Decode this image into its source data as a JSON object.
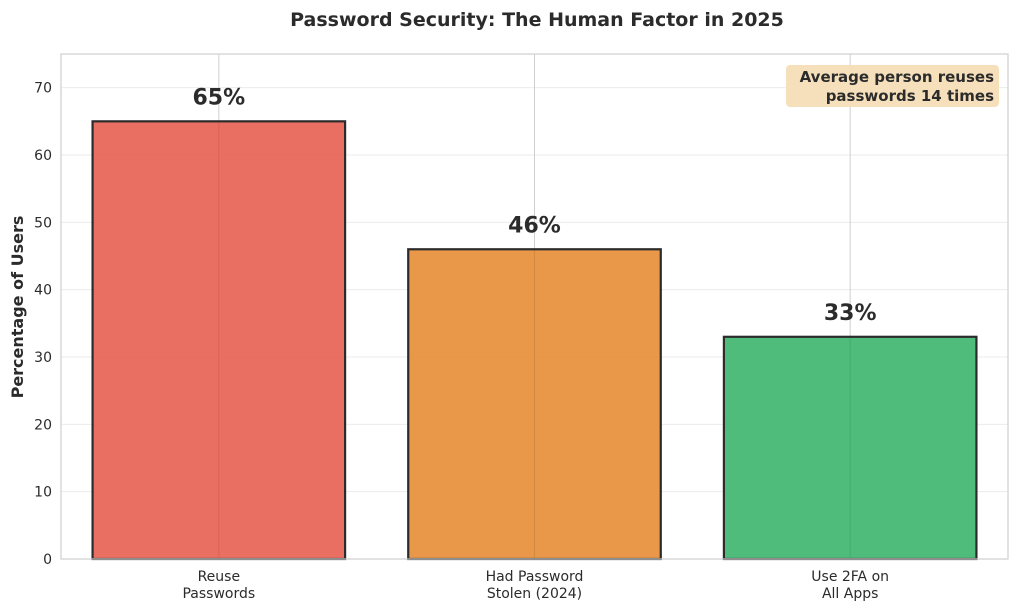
{
  "chart_data": {
    "type": "bar",
    "title": "Password Security: The Human Factor in 2025",
    "ylabel": "Percentage of Users",
    "xlabel": "",
    "categories": [
      [
        "Reuse",
        "Passwords"
      ],
      [
        "Had Password",
        "Stolen (2024)"
      ],
      [
        "Use 2FA on",
        "All Apps"
      ]
    ],
    "values": [
      65,
      46,
      33
    ],
    "data_labels": [
      "65%",
      "46%",
      "33%"
    ],
    "colors": [
      "#e8675a",
      "#e8913f",
      "#46b874"
    ],
    "ylim": [
      0,
      75
    ],
    "yticks": [
      0,
      10,
      20,
      30,
      40,
      50,
      60,
      70
    ],
    "grid": true,
    "annotation": {
      "lines": [
        "Average person reuses",
        "passwords 14 times"
      ],
      "placement": "top-right",
      "background": "#f5deb8"
    }
  }
}
